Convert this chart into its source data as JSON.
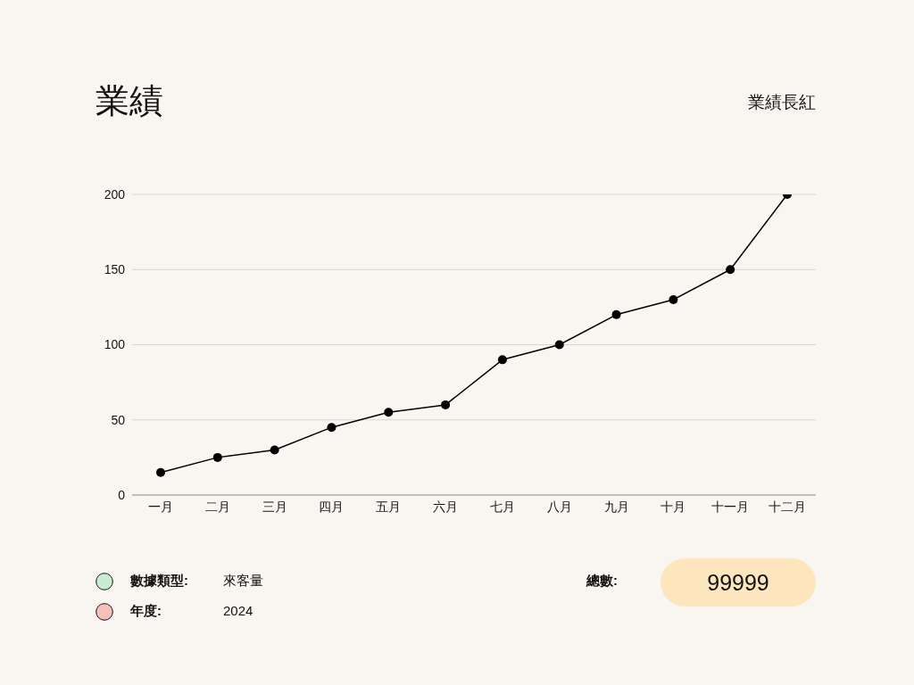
{
  "chart_data": {
    "type": "line",
    "title": "業績",
    "subtitle": "業績長紅",
    "categories": [
      "一月",
      "二月",
      "三月",
      "四月",
      "五月",
      "六月",
      "七月",
      "八月",
      "九月",
      "十月",
      "十一月",
      "十二月"
    ],
    "series": [
      {
        "color": "#000000",
        "values": [
          15,
          25,
          30,
          45,
          55,
          60,
          90,
          100,
          120,
          130,
          150,
          200
        ]
      }
    ],
    "ylim": [
      0,
      200
    ],
    "yticks": [
      0,
      50,
      100,
      150,
      200
    ],
    "grid": "y",
    "marker": "circle",
    "line_style": "solid",
    "annotations": [
      "數據類型:",
      "來客量",
      "年度:",
      "2024",
      "總數:",
      "99999"
    ]
  }
}
